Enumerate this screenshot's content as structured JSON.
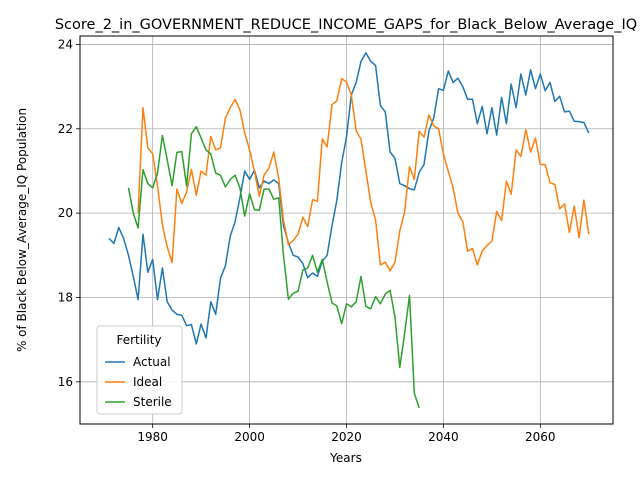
{
  "chart_data": {
    "type": "line",
    "title": "Score_2_in_GOVERNMENT_REDUCE_INCOME_GAPS_for_Black_Below_Average_IQ",
    "xlabel": "Years",
    "ylabel": "% of Black Below_Average_IQ Population",
    "xlim": [
      1965,
      2075
    ],
    "ylim": [
      15.0,
      24.2
    ],
    "xticks": [
      1980,
      2000,
      2020,
      2040,
      2060
    ],
    "yticks": [
      16,
      18,
      20,
      22,
      24
    ],
    "grid": true,
    "legend": {
      "title": "Fertility",
      "placement": "lower-left"
    },
    "series": [
      {
        "name": "Actual",
        "color": "#1f77b4",
        "x": [
          1971,
          1972,
          1973,
          1974,
          1975,
          1976,
          1977,
          1978,
          1979,
          1980,
          1981,
          1982,
          1983,
          1984,
          1985,
          1986,
          1987,
          1988,
          1989,
          1990,
          1991,
          1992,
          1993,
          1994,
          1995,
          1996,
          1997,
          1998,
          1999,
          2000,
          2001,
          2002,
          2003,
          2004,
          2005,
          2006,
          2007,
          2008,
          2009,
          2010,
          2011,
          2012,
          2013,
          2014,
          2015,
          2016,
          2017,
          2018,
          2019,
          2020,
          2021,
          2022,
          2023,
          2024,
          2025,
          2026,
          2027,
          2028,
          2029,
          2030,
          2031,
          2032,
          2033,
          2034,
          2035,
          2036,
          2037,
          2038,
          2039,
          2040,
          2041,
          2042,
          2043,
          2044,
          2045,
          2046,
          2047,
          2048,
          2049,
          2050,
          2051,
          2052,
          2053,
          2054,
          2055,
          2056,
          2057,
          2058,
          2059,
          2060,
          2061,
          2062,
          2063,
          2064,
          2065,
          2066,
          2067,
          2068,
          2069,
          2070
        ],
        "y": [
          19.4,
          19.28,
          19.66,
          19.4,
          19.0,
          18.5,
          17.95,
          19.5,
          18.6,
          18.9,
          17.95,
          18.7,
          17.9,
          17.7,
          17.6,
          17.58,
          17.33,
          17.36,
          16.9,
          17.37,
          17.04,
          17.9,
          17.6,
          18.46,
          18.75,
          19.45,
          19.8,
          20.36,
          21.0,
          20.8,
          21.02,
          20.6,
          20.76,
          20.7,
          20.79,
          20.7,
          19.7,
          19.3,
          19.0,
          18.96,
          18.8,
          18.47,
          18.58,
          18.5,
          18.86,
          19.0,
          19.7,
          20.3,
          21.2,
          21.8,
          22.8,
          23.1,
          23.6,
          23.8,
          23.6,
          23.5,
          22.55,
          22.4,
          21.45,
          21.3,
          20.7,
          20.65,
          20.58,
          20.55,
          20.97,
          21.15,
          21.95,
          22.25,
          22.95,
          22.91,
          23.37,
          23.1,
          23.2,
          23.0,
          22.7,
          22.7,
          22.12,
          22.53,
          21.88,
          22.5,
          21.85,
          22.75,
          22.12,
          23.06,
          22.5,
          23.3,
          22.8,
          23.4,
          22.95,
          23.3,
          22.9,
          23.1,
          22.65,
          22.77,
          22.4,
          22.42,
          22.18,
          22.17,
          22.15,
          21.9
        ]
      },
      {
        "name": "Ideal",
        "color": "#ff7f0e",
        "x": [
          1977,
          1978,
          1979,
          1980,
          1981,
          1982,
          1983,
          1984,
          1985,
          1986,
          1987,
          1988,
          1989,
          1990,
          1991,
          1992,
          1993,
          1994,
          1995,
          1996,
          1997,
          1998,
          1999,
          2000,
          2001,
          2002,
          2003,
          2004,
          2005,
          2006,
          2007,
          2008,
          2009,
          2010,
          2011,
          2012,
          2013,
          2014,
          2015,
          2016,
          2017,
          2018,
          2019,
          2020,
          2021,
          2022,
          2023,
          2024,
          2025,
          2026,
          2027,
          2028,
          2029,
          2030,
          2031,
          2032,
          2033,
          2034,
          2035,
          2036,
          2037,
          2038,
          2039,
          2040,
          2041,
          2042,
          2043,
          2044,
          2045,
          2046,
          2047,
          2048,
          2049,
          2050,
          2051,
          2052,
          2053,
          2054,
          2055,
          2056,
          2057,
          2058,
          2059,
          2060,
          2061,
          2062,
          2063,
          2064,
          2065,
          2066,
          2067,
          2068,
          2069,
          2070
        ],
        "y": [
          20.0,
          22.5,
          21.55,
          21.4,
          20.65,
          19.72,
          19.2,
          18.83,
          20.57,
          20.23,
          20.5,
          21.04,
          20.42,
          21.0,
          20.9,
          21.82,
          21.5,
          21.55,
          22.25,
          22.5,
          22.7,
          22.45,
          21.9,
          21.5,
          21.0,
          20.4,
          20.9,
          21.07,
          21.45,
          20.82,
          19.83,
          19.25,
          19.35,
          19.5,
          19.9,
          19.68,
          20.32,
          20.28,
          21.76,
          21.57,
          22.57,
          22.66,
          23.19,
          23.11,
          22.8,
          21.95,
          21.75,
          21.0,
          20.25,
          19.84,
          18.77,
          18.84,
          18.63,
          18.84,
          19.58,
          20.03,
          21.1,
          20.8,
          21.94,
          21.8,
          22.33,
          22.07,
          22.0,
          21.4,
          20.99,
          20.6,
          20.0,
          19.8,
          19.1,
          19.16,
          18.77,
          19.1,
          19.23,
          19.34,
          20.04,
          19.82,
          20.76,
          20.45,
          21.5,
          21.34,
          21.98,
          21.45,
          21.78,
          21.15,
          21.15,
          20.72,
          20.68,
          20.1,
          20.22,
          19.54,
          20.17,
          19.42,
          20.31,
          19.5
        ]
      },
      {
        "name": "Sterile",
        "color": "#2ca02c",
        "x": [
          1975,
          1976,
          1977,
          1978,
          1979,
          1980,
          1981,
          1982,
          1983,
          1984,
          1985,
          1986,
          1987,
          1988,
          1989,
          1990,
          1991,
          1992,
          1993,
          1994,
          1995,
          1996,
          1997,
          1998,
          1999,
          2000,
          2001,
          2002,
          2003,
          2004,
          2005,
          2006,
          2007,
          2008,
          2009,
          2010,
          2011,
          2012,
          2013,
          2014,
          2015,
          2016,
          2017,
          2018,
          2019,
          2020,
          2021,
          2022,
          2023,
          2024,
          2025,
          2026,
          2027,
          2028,
          2029,
          2030,
          2031,
          2032,
          2033,
          2034,
          2035
        ],
        "y": [
          20.6,
          20.0,
          19.65,
          21.03,
          20.7,
          20.6,
          20.95,
          21.84,
          21.27,
          20.65,
          21.44,
          21.46,
          20.64,
          21.88,
          22.05,
          21.78,
          21.5,
          21.4,
          20.95,
          20.9,
          20.62,
          20.8,
          20.9,
          20.6,
          19.93,
          20.46,
          20.08,
          20.07,
          20.57,
          20.57,
          20.33,
          20.36,
          19.0,
          17.96,
          18.1,
          18.15,
          18.65,
          18.7,
          19.0,
          18.6,
          18.9,
          18.37,
          17.87,
          17.8,
          17.38,
          17.85,
          17.78,
          17.9,
          18.5,
          17.79,
          17.73,
          18.02,
          17.85,
          18.08,
          18.17,
          17.53,
          16.34,
          17.14,
          18.05,
          15.73,
          15.38
        ]
      }
    ]
  }
}
